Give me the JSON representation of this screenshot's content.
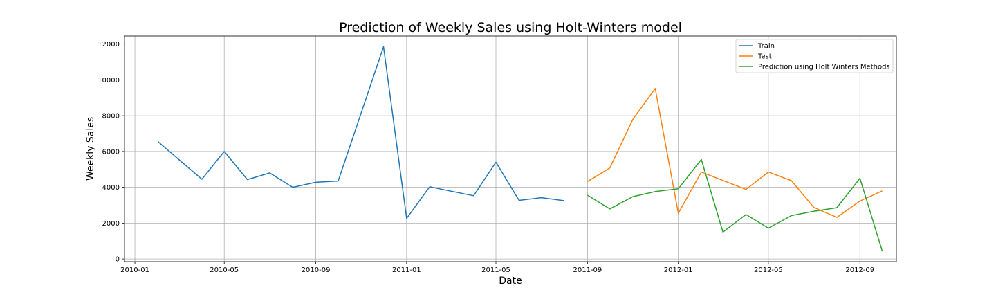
{
  "chart_data": {
    "type": "line",
    "title": "Prediction of Weekly Sales using Holt-Winters model",
    "xlabel": "Date",
    "ylabel": "Weekly Sales",
    "x_type": "date",
    "xlim": [
      "2009-12-18",
      "2012-10-20"
    ],
    "ylim": [
      -150,
      12450
    ],
    "x_ticks": [
      "2010-01-01",
      "2010-05-01",
      "2010-09-01",
      "2011-01-01",
      "2011-05-01",
      "2011-09-01",
      "2012-01-01",
      "2012-05-01",
      "2012-09-01"
    ],
    "x_tick_labels": [
      "2010-01",
      "2010-05",
      "2010-09",
      "2011-01",
      "2011-05",
      "2011-09",
      "2012-01",
      "2012-05",
      "2012-09"
    ],
    "y_ticks": [
      0,
      2000,
      4000,
      6000,
      8000,
      10000,
      12000
    ],
    "y_tick_labels": [
      "0",
      "2000",
      "4000",
      "6000",
      "8000",
      "10000",
      "12000"
    ],
    "grid": true,
    "legend_position": "top-right",
    "series": [
      {
        "name": "Train",
        "color": "#1f77b4",
        "x": [
          "2010-02-01",
          "2010-04-01",
          "2010-05-01",
          "2010-06-01",
          "2010-07-01",
          "2010-08-01",
          "2010-09-01",
          "2010-10-01",
          "2010-12-01",
          "2011-01-01",
          "2011-02-01",
          "2011-04-01",
          "2011-05-01",
          "2011-06-01",
          "2011-07-01",
          "2011-08-01"
        ],
        "y": [
          6550,
          4450,
          6000,
          4430,
          4800,
          4000,
          4280,
          4350,
          11850,
          2260,
          4030,
          3530,
          5400,
          3270,
          3420,
          3250
        ]
      },
      {
        "name": "Test",
        "color": "#ff7f0e",
        "x": [
          "2011-09-01",
          "2011-10-01",
          "2011-11-01",
          "2011-12-01",
          "2012-01-01",
          "2012-02-01",
          "2012-03-01",
          "2012-04-01",
          "2012-05-01",
          "2012-06-01",
          "2012-07-01",
          "2012-08-01",
          "2012-09-01",
          "2012-10-01"
        ],
        "y": [
          4320,
          5080,
          7800,
          9520,
          2550,
          4850,
          4380,
          3880,
          4850,
          4370,
          2880,
          2320,
          3230,
          3800
        ]
      },
      {
        "name": "Prediction using Holt Winters Methods",
        "color": "#2ca02c",
        "x": [
          "2011-09-01",
          "2011-10-01",
          "2011-11-01",
          "2011-12-01",
          "2012-01-01",
          "2012-02-01",
          "2012-03-01",
          "2012-04-01",
          "2012-05-01",
          "2012-06-01",
          "2012-07-01",
          "2012-08-01",
          "2012-09-01",
          "2012-10-01"
        ],
        "y": [
          3560,
          2790,
          3480,
          3760,
          3920,
          5550,
          1500,
          2480,
          1720,
          2420,
          2660,
          2860,
          4500,
          430
        ]
      }
    ]
  }
}
